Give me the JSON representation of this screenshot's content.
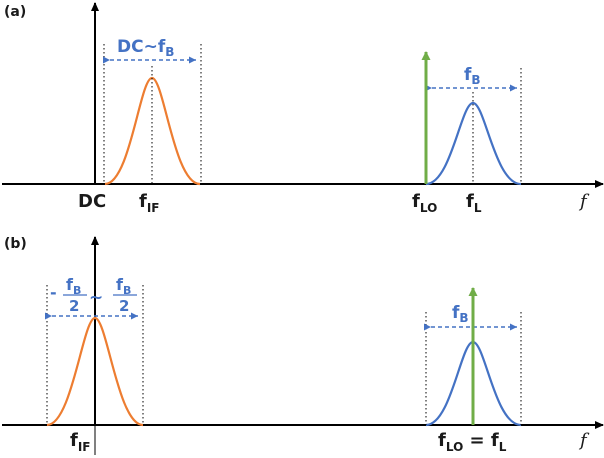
{
  "panel_a": {
    "tag": "(a)",
    "dc_label": "DC",
    "dc_bw_main": "DC~f",
    "dc_bw_sub": "B",
    "fif_main": "f",
    "fif_sub": "IF",
    "flo_main": "f",
    "flo_sub": "LO",
    "fl_main": "f",
    "fl_sub": "L",
    "fb_main": "f",
    "fb_sub": "B",
    "axis_label": "f"
  },
  "panel_b": {
    "tag": "(b)",
    "left_num_main": "f",
    "left_num_sub": "B",
    "left_den": "2",
    "tilde": "~",
    "right_num_main": "f",
    "right_num_sub": "B",
    "right_den": "2",
    "minus": "-",
    "fif_main": "f",
    "fif_sub": "IF",
    "flo_eq_main": "f",
    "flo_eq_sub": "LO",
    "eq": " = ",
    "fl_eq_main": "f",
    "fl_eq_sub": "L",
    "fb_main": "f",
    "fb_sub": "B",
    "axis_label": "f"
  },
  "colors": {
    "axis": "#000000",
    "if_curve": "#ed7d31",
    "signal_curve": "#4472c4",
    "lo_arrow": "#70ad47",
    "annotation": "#4472c4"
  }
}
